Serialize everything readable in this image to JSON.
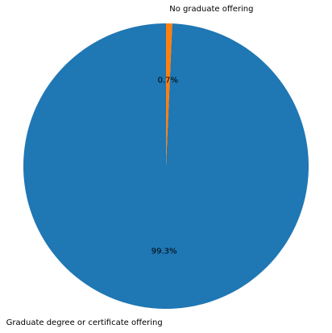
{
  "chart_data": {
    "type": "pie",
    "title": "",
    "slices": [
      {
        "label": "Graduate degree or certificate offering",
        "value": 99.3,
        "pct_label": "99.3%",
        "color": "#1f77b4"
      },
      {
        "label": "No graduate offering",
        "value": 0.7,
        "pct_label": "0.7%",
        "color": "#ff7f0e"
      }
    ],
    "start_angle_deg": 90,
    "direction": "counterclockwise",
    "legend": "none"
  }
}
